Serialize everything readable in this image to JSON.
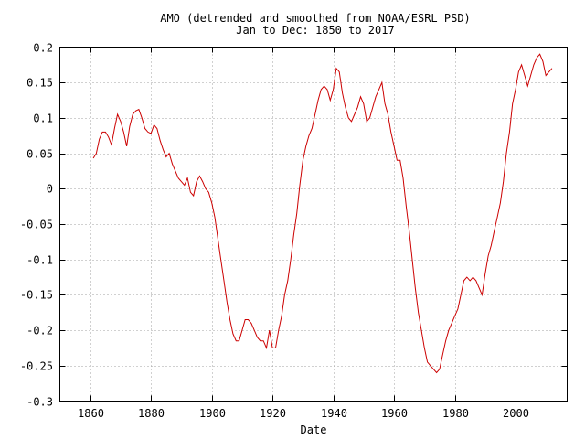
{
  "chart_data": {
    "type": "line",
    "title": "AMO (detrended and smoothed from NOAA/ESRL PSD)",
    "subtitle": "Jan to Dec: 1850 to 2017",
    "xlabel": "Date",
    "ylabel": "",
    "xlim": [
      1850,
      2017
    ],
    "ylim": [
      -0.3,
      0.2
    ],
    "grid": true,
    "legend": "none",
    "x_ticks": [
      1860,
      1880,
      1900,
      1920,
      1940,
      1960,
      1980,
      2000
    ],
    "y_ticks": [
      0.2,
      0.15,
      0.1,
      0.05,
      0,
      -0.05,
      -0.1,
      -0.15,
      -0.2,
      -0.25,
      -0.3
    ],
    "y_tick_labels": [
      "0.2",
      "0.15",
      "0.1",
      "0.05",
      "0",
      "-0.05",
      "-0.1",
      "-0.15",
      "-0.2",
      "-0.25",
      "-0.3"
    ],
    "series_color": "#cc0000",
    "series": [
      {
        "x": [
          1861,
          1862,
          1863,
          1864,
          1865,
          1866,
          1867,
          1868,
          1869,
          1870,
          1871,
          1872,
          1873,
          1874,
          1875,
          1876,
          1877,
          1878,
          1879,
          1880,
          1881,
          1882,
          1883,
          1884,
          1885,
          1886,
          1887,
          1888,
          1889,
          1890,
          1891,
          1892,
          1893,
          1894,
          1895,
          1896,
          1897,
          1898,
          1899,
          1900,
          1901,
          1902,
          1903,
          1904,
          1905,
          1906,
          1907,
          1908,
          1909,
          1910,
          1911,
          1912,
          1913,
          1914,
          1915,
          1916,
          1917,
          1918,
          1919,
          1920,
          1921,
          1922,
          1923,
          1924,
          1925,
          1926,
          1927,
          1928,
          1929,
          1930,
          1931,
          1932,
          1933,
          1934,
          1935,
          1936,
          1937,
          1938,
          1939,
          1940,
          1941,
          1942,
          1943,
          1944,
          1945,
          1946,
          1947,
          1948,
          1949,
          1950,
          1951,
          1952,
          1953,
          1954,
          1955,
          1956,
          1957,
          1958,
          1959,
          1960,
          1961,
          1962,
          1963,
          1964,
          1965,
          1966,
          1967,
          1968,
          1969,
          1970,
          1971,
          1972,
          1973,
          1974,
          1975,
          1976,
          1977,
          1978,
          1979,
          1980,
          1981,
          1982,
          1983,
          1984,
          1985,
          1986,
          1987,
          1988,
          1989,
          1990,
          1991,
          1992,
          1993,
          1994,
          1995,
          1996,
          1997,
          1998,
          1999,
          2000,
          2001,
          2002,
          2003,
          2004,
          2005,
          2006,
          2007,
          2008,
          2009,
          2010,
          2011,
          2012
        ],
        "values": [
          0.043,
          0.05,
          0.07,
          0.08,
          0.08,
          0.073,
          0.062,
          0.085,
          0.105,
          0.095,
          0.08,
          0.06,
          0.088,
          0.105,
          0.11,
          0.112,
          0.1,
          0.085,
          0.08,
          0.078,
          0.09,
          0.085,
          0.068,
          0.055,
          0.045,
          0.05,
          0.035,
          0.025,
          0.015,
          0.01,
          0.005,
          0.015,
          -0.005,
          -0.01,
          0.01,
          0.018,
          0.01,
          0.0,
          -0.005,
          -0.02,
          -0.04,
          -0.07,
          -0.1,
          -0.13,
          -0.16,
          -0.185,
          -0.205,
          -0.215,
          -0.215,
          -0.2,
          -0.185,
          -0.185,
          -0.19,
          -0.2,
          -0.21,
          -0.215,
          -0.215,
          -0.225,
          -0.2,
          -0.225,
          -0.225,
          -0.2,
          -0.18,
          -0.15,
          -0.13,
          -0.1,
          -0.065,
          -0.035,
          0.005,
          0.04,
          0.06,
          0.075,
          0.085,
          0.105,
          0.125,
          0.14,
          0.145,
          0.14,
          0.125,
          0.14,
          0.17,
          0.165,
          0.135,
          0.115,
          0.1,
          0.095,
          0.105,
          0.115,
          0.13,
          0.12,
          0.095,
          0.1,
          0.115,
          0.13,
          0.14,
          0.15,
          0.12,
          0.105,
          0.08,
          0.06,
          0.04,
          0.04,
          0.015,
          -0.025,
          -0.06,
          -0.1,
          -0.14,
          -0.175,
          -0.2,
          -0.225,
          -0.245,
          -0.25,
          -0.255,
          -0.26,
          -0.255,
          -0.235,
          -0.215,
          -0.2,
          -0.19,
          -0.18,
          -0.17,
          -0.15,
          -0.13,
          -0.125,
          -0.13,
          -0.125,
          -0.13,
          -0.14,
          -0.15,
          -0.12,
          -0.095,
          -0.08,
          -0.06,
          -0.04,
          -0.02,
          0.01,
          0.05,
          0.08,
          0.12,
          0.14,
          0.165,
          0.175,
          0.16,
          0.145,
          0.16,
          0.175,
          0.185,
          0.19,
          0.18,
          0.16,
          0.165,
          0.17
        ]
      }
    ]
  }
}
